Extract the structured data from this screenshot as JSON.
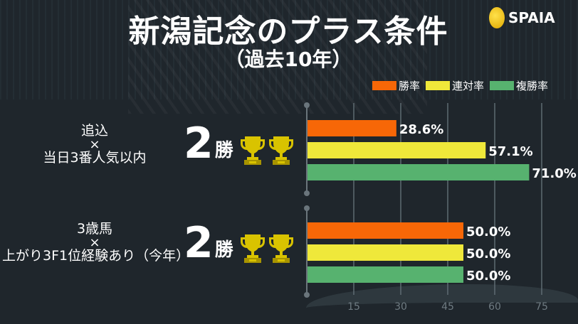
{
  "header": {
    "title": "新潟記念のプラス条件",
    "subtitle": "（過去10年）",
    "logo": "SPAIA"
  },
  "legend": [
    {
      "label": "勝率",
      "color": "#f76707"
    },
    {
      "label": "連対率",
      "color": "#efe83a"
    },
    {
      "label": "複勝率",
      "color": "#57b26f"
    }
  ],
  "groups": [
    {
      "line1": "追込",
      "sep": "×",
      "line2": "当日3番人気以内",
      "wins": "2",
      "wins_unit": "勝",
      "trophies": 2
    },
    {
      "line1": "3歳馬",
      "sep": "×",
      "line2": "上がり3F1位経験あり（今年）",
      "wins": "2",
      "wins_unit": "勝",
      "trophies": 2
    }
  ],
  "chart_data": {
    "type": "bar",
    "orientation": "horizontal",
    "categories": [
      "追込×当日3番人気以内",
      "3歳馬×上がり3F1位経験あり（今年）"
    ],
    "series": [
      {
        "name": "勝率",
        "values": [
          28.6,
          50.0
        ],
        "labels": [
          "28.6%",
          "50.0%"
        ]
      },
      {
        "name": "連対率",
        "values": [
          57.1,
          50.0
        ],
        "labels": [
          "57.1%",
          "50.0%"
        ]
      },
      {
        "name": "複勝率",
        "values": [
          71.0,
          50.0
        ],
        "labels": [
          "71.0%",
          "50.0%"
        ]
      }
    ],
    "xlim": [
      0,
      75
    ],
    "xticks": [
      15,
      30,
      45,
      60,
      75
    ],
    "grid": true,
    "legend": "top-right"
  }
}
